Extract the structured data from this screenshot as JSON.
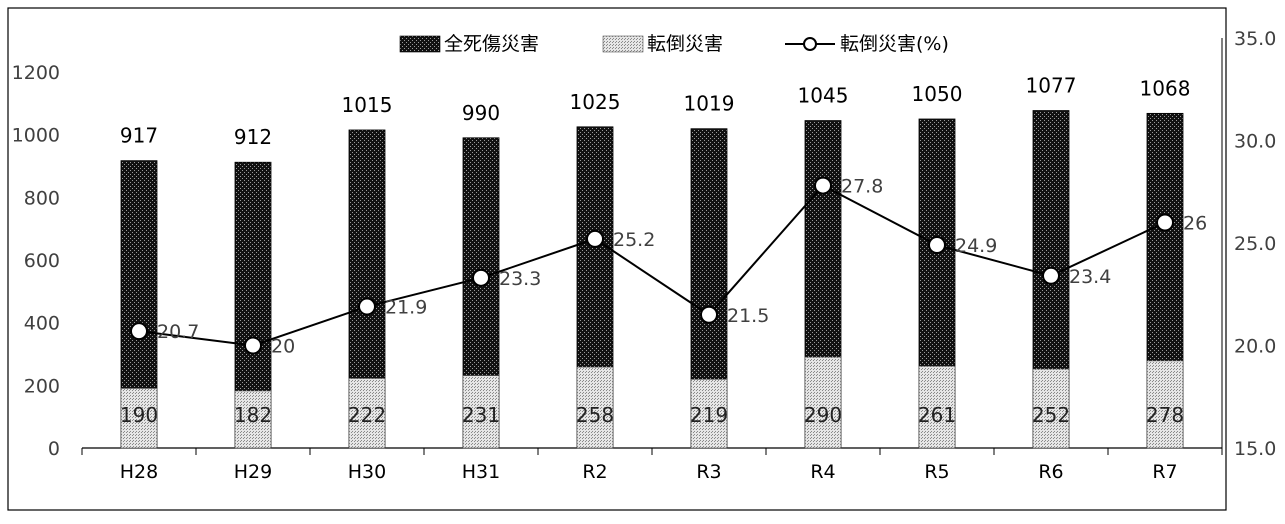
{
  "chart_data": {
    "type": "bar",
    "categories": [
      "H28",
      "H29",
      "H30",
      "H31",
      "R2",
      "R3",
      "R4",
      "R5",
      "R6",
      "R7"
    ],
    "series": [
      {
        "name": "全死傷災害",
        "type": "bar",
        "axis": "left",
        "values": [
          917,
          912,
          1015,
          990,
          1025,
          1019,
          1045,
          1050,
          1077,
          1068
        ]
      },
      {
        "name": "転倒災害",
        "type": "bar",
        "axis": "left",
        "values": [
          190,
          182,
          222,
          231,
          258,
          219,
          290,
          261,
          252,
          278
        ]
      },
      {
        "name": "転倒災害(%)",
        "type": "line",
        "axis": "right",
        "values": [
          20.7,
          20.0,
          21.9,
          23.3,
          25.2,
          21.5,
          27.8,
          24.9,
          23.4,
          26.0
        ]
      }
    ],
    "y_left": {
      "ylim": [
        0,
        1200
      ],
      "ticks": [
        "0",
        "200",
        "400",
        "600",
        "800",
        "1000",
        "1200"
      ]
    },
    "y_right": {
      "ylim": [
        15,
        35
      ],
      "ticks": [
        "15.0",
        "20.0",
        "25.0",
        "30.0",
        "35.0"
      ]
    },
    "legend": {
      "position": "top-center"
    },
    "grid": false
  },
  "colors": {
    "total_bar": "#1a1a1a",
    "fall_bar": "#d9d9d9",
    "line": "#000000",
    "text": "#000000",
    "line_label": "#404040"
  }
}
